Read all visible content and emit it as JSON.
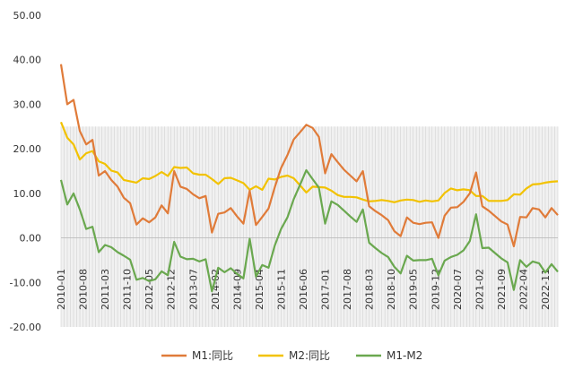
{
  "chart_data": {
    "type": "line",
    "title": "",
    "xlabel": "",
    "ylabel": "",
    "ylim": [
      -20,
      50
    ],
    "yticks": [
      "50.00",
      "40.00",
      "30.00",
      "20.00",
      "10.00",
      "0.00",
      "-10.00",
      "-20.00"
    ],
    "xtick_labels": [
      "2010-01",
      "2010-08",
      "2011-03",
      "2011-10",
      "2012-05",
      "2012-12",
      "2013-07",
      "2014-02",
      "2014-09",
      "2015-04",
      "2015-11",
      "2016-06",
      "2017-01",
      "2017-08",
      "2018-03",
      "2018-10",
      "2019-05",
      "2019-12",
      "2020-07",
      "2021-02",
      "2021-09",
      "2022-04",
      "2022-11"
    ],
    "grid": false,
    "legend_position": "bottom",
    "series": [
      {
        "name": "M1:同比",
        "color": "#E07B39",
        "points": [
          [
            "2010-01",
            39.0
          ],
          [
            "2010-03",
            30.0
          ],
          [
            "2010-05",
            31.0
          ],
          [
            "2010-07",
            24.0
          ],
          [
            "2010-09",
            21.0
          ],
          [
            "2010-11",
            22.0
          ],
          [
            "2011-01",
            14.0
          ],
          [
            "2011-03",
            15.0
          ],
          [
            "2011-05",
            13.0
          ],
          [
            "2011-07",
            11.5
          ],
          [
            "2011-09",
            9.0
          ],
          [
            "2011-11",
            7.8
          ],
          [
            "2012-01",
            3.0
          ],
          [
            "2012-03",
            4.4
          ],
          [
            "2012-05",
            3.5
          ],
          [
            "2012-07",
            4.6
          ],
          [
            "2012-09",
            7.3
          ],
          [
            "2012-11",
            5.5
          ],
          [
            "2013-01",
            15.0
          ],
          [
            "2013-03",
            11.5
          ],
          [
            "2013-05",
            11.0
          ],
          [
            "2013-07",
            9.8
          ],
          [
            "2013-09",
            8.9
          ],
          [
            "2013-11",
            9.4
          ],
          [
            "2014-01",
            1.2
          ],
          [
            "2014-03",
            5.4
          ],
          [
            "2014-05",
            5.7
          ],
          [
            "2014-07",
            6.7
          ],
          [
            "2014-09",
            4.8
          ],
          [
            "2014-11",
            3.2
          ],
          [
            "2015-01",
            10.6
          ],
          [
            "2015-03",
            2.9
          ],
          [
            "2015-05",
            4.7
          ],
          [
            "2015-07",
            6.6
          ],
          [
            "2015-09",
            11.4
          ],
          [
            "2015-11",
            15.7
          ],
          [
            "2016-01",
            18.6
          ],
          [
            "2016-03",
            22.1
          ],
          [
            "2016-05",
            23.7
          ],
          [
            "2016-07",
            25.4
          ],
          [
            "2016-09",
            24.7
          ],
          [
            "2016-11",
            22.7
          ],
          [
            "2017-01",
            14.5
          ],
          [
            "2017-03",
            18.8
          ],
          [
            "2017-05",
            17.0
          ],
          [
            "2017-07",
            15.3
          ],
          [
            "2017-09",
            14.0
          ],
          [
            "2017-11",
            12.7
          ],
          [
            "2018-01",
            15.0
          ],
          [
            "2018-03",
            7.1
          ],
          [
            "2018-05",
            6.0
          ],
          [
            "2018-07",
            5.1
          ],
          [
            "2018-09",
            4.0
          ],
          [
            "2018-11",
            1.5
          ],
          [
            "2019-01",
            0.4
          ],
          [
            "2019-03",
            4.6
          ],
          [
            "2019-05",
            3.4
          ],
          [
            "2019-07",
            3.1
          ],
          [
            "2019-09",
            3.4
          ],
          [
            "2019-11",
            3.5
          ],
          [
            "2020-01",
            0.0
          ],
          [
            "2020-03",
            5.0
          ],
          [
            "2020-05",
            6.8
          ],
          [
            "2020-07",
            6.9
          ],
          [
            "2020-09",
            8.1
          ],
          [
            "2020-11",
            10.0
          ],
          [
            "2021-01",
            14.7
          ],
          [
            "2021-03",
            7.1
          ],
          [
            "2021-05",
            6.1
          ],
          [
            "2021-07",
            4.9
          ],
          [
            "2021-09",
            3.7
          ],
          [
            "2021-11",
            3.0
          ],
          [
            "2022-01",
            -1.9
          ],
          [
            "2022-03",
            4.7
          ],
          [
            "2022-05",
            4.6
          ],
          [
            "2022-07",
            6.7
          ],
          [
            "2022-09",
            6.4
          ],
          [
            "2022-11",
            4.6
          ],
          [
            "2023-01",
            6.7
          ],
          [
            "2023-03",
            5.1
          ]
        ]
      },
      {
        "name": "M2:同比",
        "color": "#F2C200",
        "points": [
          [
            "2010-01",
            26.0
          ],
          [
            "2010-03",
            22.5
          ],
          [
            "2010-05",
            21.0
          ],
          [
            "2010-07",
            17.6
          ],
          [
            "2010-09",
            19.0
          ],
          [
            "2010-11",
            19.5
          ],
          [
            "2011-01",
            17.2
          ],
          [
            "2011-03",
            16.6
          ],
          [
            "2011-05",
            15.1
          ],
          [
            "2011-07",
            14.7
          ],
          [
            "2011-09",
            13.0
          ],
          [
            "2011-11",
            12.7
          ],
          [
            "2012-01",
            12.4
          ],
          [
            "2012-03",
            13.4
          ],
          [
            "2012-05",
            13.2
          ],
          [
            "2012-07",
            13.9
          ],
          [
            "2012-09",
            14.8
          ],
          [
            "2012-11",
            13.9
          ],
          [
            "2013-01",
            15.9
          ],
          [
            "2013-03",
            15.7
          ],
          [
            "2013-05",
            15.8
          ],
          [
            "2013-07",
            14.5
          ],
          [
            "2013-09",
            14.2
          ],
          [
            "2013-11",
            14.2
          ],
          [
            "2014-01",
            13.2
          ],
          [
            "2014-03",
            12.1
          ],
          [
            "2014-05",
            13.4
          ],
          [
            "2014-07",
            13.5
          ],
          [
            "2014-09",
            12.9
          ],
          [
            "2014-11",
            12.3
          ],
          [
            "2015-01",
            10.8
          ],
          [
            "2015-03",
            11.6
          ],
          [
            "2015-05",
            10.8
          ],
          [
            "2015-07",
            13.3
          ],
          [
            "2015-09",
            13.1
          ],
          [
            "2015-11",
            13.7
          ],
          [
            "2016-01",
            14.0
          ],
          [
            "2016-03",
            13.4
          ],
          [
            "2016-05",
            11.8
          ],
          [
            "2016-07",
            10.2
          ],
          [
            "2016-09",
            11.5
          ],
          [
            "2016-11",
            11.4
          ],
          [
            "2017-01",
            11.3
          ],
          [
            "2017-03",
            10.6
          ],
          [
            "2017-05",
            9.6
          ],
          [
            "2017-07",
            9.2
          ],
          [
            "2017-09",
            9.2
          ],
          [
            "2017-11",
            9.1
          ],
          [
            "2018-01",
            8.6
          ],
          [
            "2018-03",
            8.2
          ],
          [
            "2018-05",
            8.3
          ],
          [
            "2018-07",
            8.5
          ],
          [
            "2018-09",
            8.3
          ],
          [
            "2018-11",
            8.0
          ],
          [
            "2019-01",
            8.4
          ],
          [
            "2019-03",
            8.6
          ],
          [
            "2019-05",
            8.5
          ],
          [
            "2019-07",
            8.1
          ],
          [
            "2019-09",
            8.4
          ],
          [
            "2019-11",
            8.2
          ],
          [
            "2020-01",
            8.4
          ],
          [
            "2020-03",
            10.1
          ],
          [
            "2020-05",
            11.1
          ],
          [
            "2020-07",
            10.7
          ],
          [
            "2020-09",
            10.9
          ],
          [
            "2020-11",
            10.7
          ],
          [
            "2021-01",
            9.4
          ],
          [
            "2021-03",
            9.4
          ],
          [
            "2021-05",
            8.3
          ],
          [
            "2021-07",
            8.3
          ],
          [
            "2021-09",
            8.3
          ],
          [
            "2021-11",
            8.5
          ],
          [
            "2022-01",
            9.8
          ],
          [
            "2022-03",
            9.7
          ],
          [
            "2022-05",
            11.1
          ],
          [
            "2022-07",
            12.0
          ],
          [
            "2022-09",
            12.1
          ],
          [
            "2022-11",
            12.4
          ],
          [
            "2023-01",
            12.6
          ],
          [
            "2023-03",
            12.7
          ]
        ]
      },
      {
        "name": "M1-M2",
        "color": "#6AA84F",
        "points": [
          [
            "2010-01",
            13.0
          ],
          [
            "2010-03",
            7.5
          ],
          [
            "2010-05",
            10.0
          ],
          [
            "2010-07",
            6.4
          ],
          [
            "2010-09",
            2.0
          ],
          [
            "2010-11",
            2.5
          ],
          [
            "2011-01",
            -3.2
          ],
          [
            "2011-03",
            -1.6
          ],
          [
            "2011-05",
            -2.1
          ],
          [
            "2011-07",
            -3.2
          ],
          [
            "2011-09",
            -4.0
          ],
          [
            "2011-11",
            -4.9
          ],
          [
            "2012-01",
            -9.4
          ],
          [
            "2012-03",
            -9.0
          ],
          [
            "2012-05",
            -9.7
          ],
          [
            "2012-07",
            -9.3
          ],
          [
            "2012-09",
            -7.5
          ],
          [
            "2012-11",
            -8.4
          ],
          [
            "2013-01",
            -0.9
          ],
          [
            "2013-03",
            -4.2
          ],
          [
            "2013-05",
            -4.8
          ],
          [
            "2013-07",
            -4.7
          ],
          [
            "2013-09",
            -5.3
          ],
          [
            "2013-11",
            -4.8
          ],
          [
            "2014-01",
            -12.0
          ],
          [
            "2014-03",
            -6.7
          ],
          [
            "2014-05",
            -7.7
          ],
          [
            "2014-07",
            -6.8
          ],
          [
            "2014-09",
            -8.1
          ],
          [
            "2014-11",
            -9.1
          ],
          [
            "2015-01",
            -0.2
          ],
          [
            "2015-03",
            -8.7
          ],
          [
            "2015-05",
            -6.1
          ],
          [
            "2015-07",
            -6.7
          ],
          [
            "2015-09",
            -1.7
          ],
          [
            "2015-11",
            2.0
          ],
          [
            "2016-01",
            4.6
          ],
          [
            "2016-03",
            8.7
          ],
          [
            "2016-05",
            11.9
          ],
          [
            "2016-07",
            15.2
          ],
          [
            "2016-09",
            13.2
          ],
          [
            "2016-11",
            11.3
          ],
          [
            "2017-01",
            3.2
          ],
          [
            "2017-03",
            8.2
          ],
          [
            "2017-05",
            7.4
          ],
          [
            "2017-07",
            6.1
          ],
          [
            "2017-09",
            4.8
          ],
          [
            "2017-11",
            3.6
          ],
          [
            "2018-01",
            6.4
          ],
          [
            "2018-03",
            -1.1
          ],
          [
            "2018-05",
            -2.3
          ],
          [
            "2018-07",
            -3.4
          ],
          [
            "2018-09",
            -4.3
          ],
          [
            "2018-11",
            -6.5
          ],
          [
            "2019-01",
            -8.0
          ],
          [
            "2019-03",
            -4.0
          ],
          [
            "2019-05",
            -5.1
          ],
          [
            "2019-07",
            -5.0
          ],
          [
            "2019-09",
            -5.0
          ],
          [
            "2019-11",
            -4.7
          ],
          [
            "2020-01",
            -8.4
          ],
          [
            "2020-03",
            -5.1
          ],
          [
            "2020-05",
            -4.3
          ],
          [
            "2020-07",
            -3.8
          ],
          [
            "2020-09",
            -2.8
          ],
          [
            "2020-11",
            -0.7
          ],
          [
            "2021-01",
            5.3
          ],
          [
            "2021-03",
            -2.3
          ],
          [
            "2021-05",
            -2.2
          ],
          [
            "2021-07",
            -3.4
          ],
          [
            "2021-09",
            -4.6
          ],
          [
            "2021-11",
            -5.5
          ],
          [
            "2022-01",
            -11.7
          ],
          [
            "2022-03",
            -5.0
          ],
          [
            "2022-05",
            -6.5
          ],
          [
            "2022-07",
            -5.3
          ],
          [
            "2022-09",
            -5.7
          ],
          [
            "2022-11",
            -7.8
          ],
          [
            "2023-01",
            -5.9
          ],
          [
            "2023-03",
            -7.6
          ]
        ]
      }
    ]
  }
}
